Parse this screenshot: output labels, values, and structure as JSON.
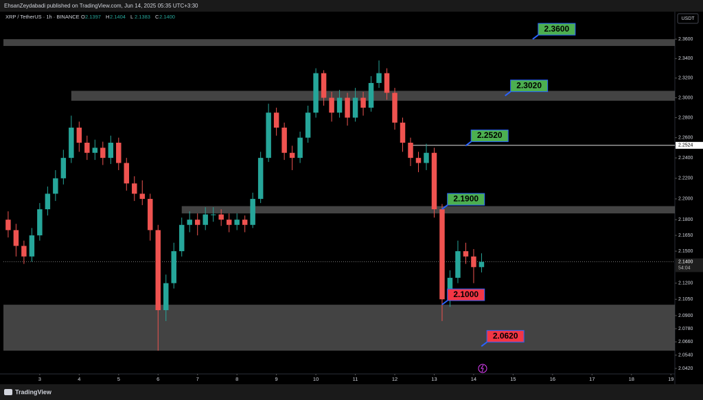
{
  "header": {
    "publisher": "EhsanZeydabadi published on TradingView.com, Jun 14, 2025 05:35 UTC+3:30"
  },
  "footer": {
    "brand": "TradingView"
  },
  "chart_data": {
    "type": "candlestick",
    "title": "XRP / TetherUS · 1h · BINANCE",
    "ohlc_header": [
      {
        "key": "O",
        "text": "2.1397"
      },
      {
        "key": "H",
        "text": "2.1404"
      },
      {
        "key": "L",
        "text": "2.1383"
      },
      {
        "key": "C",
        "text": "2.1400"
      }
    ],
    "currency": "USDT",
    "log_scale": true,
    "up_color": "#26a69a",
    "down_color": "#ef5350",
    "xlim": [
      2.08,
      19.1
    ],
    "xticks": [
      3,
      4,
      5,
      6,
      7,
      8,
      9,
      10,
      11,
      12,
      13,
      14,
      15,
      16,
      17,
      18,
      19
    ],
    "ylim": [
      2.034,
      2.388
    ],
    "yticks": [
      {
        "value": 2.36,
        "label": "2.3600"
      },
      {
        "value": 2.34,
        "label": "2.3400"
      },
      {
        "value": 2.32,
        "label": "2.3200"
      },
      {
        "value": 2.3,
        "label": "2.3000"
      },
      {
        "value": 2.28,
        "label": "2.2800"
      },
      {
        "value": 2.26,
        "label": "2.2600"
      },
      {
        "value": 2.24,
        "label": "2.2400"
      },
      {
        "value": 2.22,
        "label": "2.2200"
      },
      {
        "value": 2.2,
        "label": "2.2000"
      },
      {
        "value": 2.18,
        "label": "2.1800"
      },
      {
        "value": 2.165,
        "label": "2.1650"
      },
      {
        "value": 2.15,
        "label": "2.1500"
      },
      {
        "value": 2.12,
        "label": "2.1200"
      },
      {
        "value": 2.105,
        "label": "2.1050"
      },
      {
        "value": 2.09,
        "label": "2.0900"
      },
      {
        "value": 2.078,
        "label": "2.0780"
      },
      {
        "value": 2.066,
        "label": "2.0660"
      },
      {
        "value": 2.054,
        "label": "2.0540"
      },
      {
        "value": 2.042,
        "label": "2.0420"
      }
    ],
    "x": [
      2.2,
      2.4,
      2.6,
      2.8,
      3.0,
      3.2,
      3.4,
      3.6,
      3.8,
      4.0,
      4.2,
      4.4,
      4.6,
      4.8,
      5.0,
      5.2,
      5.4,
      5.6,
      5.8,
      6.0,
      6.2,
      6.4,
      6.6,
      6.8,
      7.0,
      7.2,
      7.4,
      7.6,
      7.8,
      8.0,
      8.2,
      8.4,
      8.6,
      8.8,
      9.0,
      9.2,
      9.4,
      9.6,
      9.8,
      10.0,
      10.2,
      10.4,
      10.6,
      10.8,
      11.0,
      11.2,
      11.4,
      11.6,
      11.8,
      12.0,
      12.2,
      12.4,
      12.6,
      12.8,
      13.0,
      13.2,
      13.4,
      13.6,
      13.8,
      14.0,
      14.2
    ],
    "open": [
      2.18,
      2.17,
      2.155,
      2.145,
      2.165,
      2.19,
      2.205,
      2.22,
      2.24,
      2.27,
      2.255,
      2.245,
      2.25,
      2.24,
      2.255,
      2.235,
      2.215,
      2.205,
      2.2,
      2.17,
      2.095,
      2.12,
      2.15,
      2.175,
      2.18,
      2.175,
      2.185,
      2.185,
      2.18,
      2.175,
      2.18,
      2.175,
      2.2,
      2.24,
      2.285,
      2.27,
      2.245,
      2.24,
      2.26,
      2.285,
      2.325,
      2.3,
      2.285,
      2.3,
      2.28,
      2.3,
      2.29,
      2.315,
      2.325,
      2.305,
      2.275,
      2.255,
      2.24,
      2.235,
      2.245,
      2.19,
      2.105,
      2.125,
      2.15,
      2.145,
      2.135
    ],
    "high": [
      2.188,
      2.176,
      2.16,
      2.172,
      2.196,
      2.212,
      2.228,
      2.248,
      2.282,
      2.276,
      2.262,
      2.258,
      2.256,
      2.262,
      2.26,
      2.24,
      2.222,
      2.218,
      2.205,
      2.175,
      2.128,
      2.158,
      2.182,
      2.188,
      2.186,
      2.192,
      2.192,
      2.19,
      2.186,
      2.186,
      2.184,
      2.206,
      2.246,
      2.294,
      2.29,
      2.275,
      2.252,
      2.266,
      2.292,
      2.33,
      2.328,
      2.306,
      2.308,
      2.305,
      2.31,
      2.306,
      2.322,
      2.338,
      2.33,
      2.31,
      2.28,
      2.26,
      2.246,
      2.254,
      2.25,
      2.195,
      2.132,
      2.16,
      2.158,
      2.152,
      2.148
    ],
    "low": [
      2.163,
      2.145,
      2.138,
      2.14,
      2.16,
      2.184,
      2.198,
      2.214,
      2.235,
      2.246,
      2.238,
      2.238,
      2.233,
      2.234,
      2.228,
      2.208,
      2.198,
      2.194,
      2.16,
      2.058,
      2.085,
      2.115,
      2.145,
      2.168,
      2.165,
      2.17,
      2.178,
      2.174,
      2.168,
      2.17,
      2.168,
      2.172,
      2.196,
      2.236,
      2.262,
      2.238,
      2.228,
      2.235,
      2.255,
      2.28,
      2.292,
      2.276,
      2.28,
      2.272,
      2.276,
      2.282,
      2.286,
      2.31,
      2.298,
      2.268,
      2.246,
      2.232,
      2.226,
      2.228,
      2.182,
      2.085,
      2.098,
      2.12,
      2.138,
      2.12,
      2.13
    ],
    "close": [
      2.17,
      2.155,
      2.145,
      2.165,
      2.19,
      2.205,
      2.22,
      2.24,
      2.27,
      2.255,
      2.245,
      2.25,
      2.24,
      2.255,
      2.235,
      2.215,
      2.205,
      2.2,
      2.17,
      2.095,
      2.12,
      2.15,
      2.175,
      2.18,
      2.175,
      2.185,
      2.185,
      2.18,
      2.175,
      2.18,
      2.175,
      2.2,
      2.24,
      2.285,
      2.27,
      2.245,
      2.24,
      2.26,
      2.285,
      2.325,
      2.3,
      2.285,
      2.3,
      2.28,
      2.3,
      2.29,
      2.315,
      2.325,
      2.305,
      2.275,
      2.255,
      2.24,
      2.235,
      2.245,
      2.19,
      2.105,
      2.125,
      2.15,
      2.145,
      2.135,
      2.14
    ],
    "zones": [
      {
        "low": 2.353,
        "high": 2.36,
        "start": 2.08
      },
      {
        "low": 2.297,
        "high": 2.307,
        "start": 3.8
      },
      {
        "low": 2.186,
        "high": 2.193,
        "start": 6.6
      },
      {
        "low": 2.058,
        "high": 2.1,
        "start": 2.08
      }
    ],
    "level_line": {
      "value": 2.2524,
      "label": "2.2524",
      "start": 12.4
    },
    "current_price": {
      "value": 2.14,
      "label": "2.1400",
      "countdown": "54:04"
    },
    "annotations": [
      {
        "value": 2.36,
        "label": "2.3600",
        "x": 15.6,
        "color": "#4caf50"
      },
      {
        "value": 2.302,
        "label": "2.3020",
        "x": 14.9,
        "color": "#4caf50"
      },
      {
        "value": 2.252,
        "label": "2.2520",
        "x": 13.9,
        "color": "#4caf50"
      },
      {
        "value": 2.19,
        "label": "2.1900",
        "x": 13.3,
        "color": "#4caf50"
      },
      {
        "value": 2.1,
        "label": "2.1000",
        "x": 13.3,
        "color": "#f23645"
      },
      {
        "value": 2.062,
        "label": "2.0620",
        "x": 14.3,
        "color": "#f23645"
      }
    ]
  }
}
